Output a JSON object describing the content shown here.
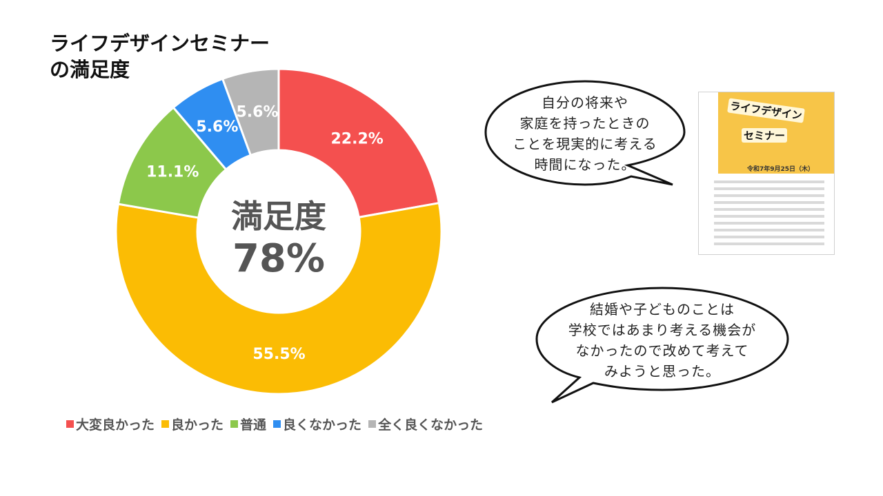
{
  "title_lines": [
    "ライフデザインセミナー",
    "の満足度"
  ],
  "center": {
    "label": "満足度",
    "value": "78%"
  },
  "chart_data": {
    "type": "pie",
    "variant": "donut",
    "title": "ライフデザインセミナーの満足度",
    "categories": [
      "大変良かった",
      "良かった",
      "普通",
      "良くなかった",
      "全く良くなかった"
    ],
    "values": [
      22.2,
      55.5,
      11.1,
      5.6,
      5.6
    ],
    "data_labels": [
      "22.2%",
      "55.5%",
      "11.1%",
      "5.6%",
      "5.6%"
    ],
    "colors": [
      "#f4504f",
      "#fbbc04",
      "#8cc84b",
      "#2f8ef1",
      "#b5b5b5"
    ],
    "legend_placement": "bottom"
  },
  "bubbles": [
    {
      "lines": [
        "自分の将来や",
        "家庭を持ったときの",
        "ことを現実的に考える",
        "時間になった。"
      ]
    },
    {
      "lines": [
        "結婚や子どものことは",
        "学校ではあまり考える機会が",
        "なかったので改めて考えて",
        "みようと思った。"
      ]
    }
  ],
  "flyer": {
    "title_1": "ライフデザイン",
    "title_2": "セミナー",
    "date": "令和7年9月25日（木）"
  }
}
